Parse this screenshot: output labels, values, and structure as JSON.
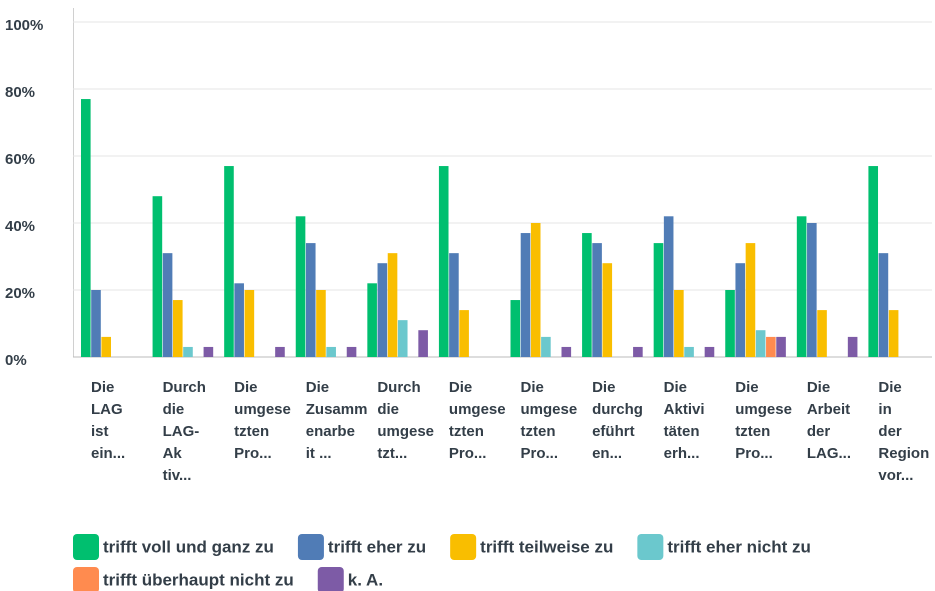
{
  "chart_data": {
    "type": "bar",
    "categories": [
      [
        "Die",
        "LAG",
        "ist",
        "ein..."
      ],
      [
        "Durch",
        "die",
        "LAG-",
        "Ak",
        "tiv..."
      ],
      [
        "Die",
        "umgese",
        "tzten",
        "Pro..."
      ],
      [
        "Die",
        "Zusamm",
        "enarbe",
        "it ..."
      ],
      [
        "Durch",
        "die",
        "umgese",
        "tzt..."
      ],
      [
        "Die",
        "umgese",
        "tzten",
        "Pro..."
      ],
      [
        "Die",
        "umgese",
        "tzten",
        "Pro..."
      ],
      [
        "Die",
        "durchg",
        "eführt",
        "en..."
      ],
      [
        "Die",
        "Aktivi",
        "täten",
        "erh..."
      ],
      [
        "Die",
        "umgese",
        "tzten",
        "Pro..."
      ],
      [
        "Die",
        "Arbeit",
        "der",
        "LAG..."
      ],
      [
        "Die",
        "in",
        "der",
        "Region",
        "vor..."
      ]
    ],
    "series": [
      {
        "name": "trifft voll und ganz zu",
        "color": "#00bf6f",
        "values": [
          77,
          48,
          57,
          42,
          22,
          57,
          17,
          37,
          34,
          20,
          42,
          57
        ]
      },
      {
        "name": "trifft eher zu",
        "color": "#507cb6",
        "values": [
          20,
          31,
          22,
          34,
          28,
          31,
          37,
          34,
          42,
          28,
          40,
          31
        ]
      },
      {
        "name": "trifft teilweise zu",
        "color": "#f9be00",
        "values": [
          6,
          17,
          20,
          20,
          31,
          14,
          40,
          28,
          20,
          34,
          14,
          14
        ]
      },
      {
        "name": "trifft eher nicht zu",
        "color": "#6bc8cd",
        "values": [
          0,
          3,
          0,
          3,
          11,
          0,
          6,
          0,
          3,
          8,
          0,
          0
        ]
      },
      {
        "name": "trifft überhaupt nicht zu",
        "color": "#ff8b4f",
        "values": [
          0,
          0,
          0,
          0,
          0,
          0,
          0,
          0,
          0,
          6,
          0,
          0
        ]
      },
      {
        "name": "k. A.",
        "color": "#7d5ba6",
        "values": [
          0,
          3,
          3,
          3,
          8,
          0,
          3,
          3,
          3,
          6,
          6,
          0
        ]
      }
    ],
    "ylim": [
      0,
      100
    ],
    "yticks": [
      {
        "value": 0,
        "label": "0%"
      },
      {
        "value": 20,
        "label": "20%"
      },
      {
        "value": 40,
        "label": "40%"
      },
      {
        "value": 60,
        "label": "60%"
      },
      {
        "value": 80,
        "label": "80%"
      },
      {
        "value": 100,
        "label": "100%"
      }
    ],
    "grid": true
  }
}
